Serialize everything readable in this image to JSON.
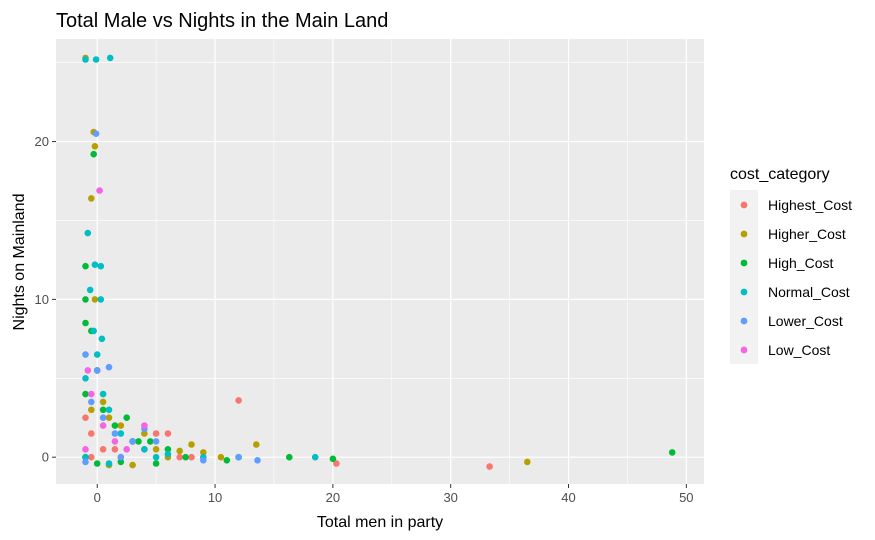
{
  "chart_data": {
    "type": "scatter",
    "title": "Total Male vs Nights in the Main Land",
    "xlabel": "Total men in party",
    "ylabel": "Nights on Mainland",
    "xlim": [
      -3.5,
      51.5
    ],
    "ylim": [
      -1.7,
      26.5
    ],
    "x_ticks": [
      0,
      10,
      20,
      30,
      40,
      50
    ],
    "y_ticks": [
      0,
      10,
      20
    ],
    "grid": true,
    "legend": {
      "title": "cost_category",
      "position": "right",
      "entries": [
        "Highest_Cost",
        "Higher_Cost",
        "High_Cost",
        "Normal_Cost",
        "Lower_Cost",
        "Low_Cost"
      ]
    },
    "colors": {
      "Highest_Cost": "#F8766D",
      "Higher_Cost": "#B79F00",
      "High_Cost": "#00BA38",
      "Normal_Cost": "#00BFC4",
      "Lower_Cost": "#619CFF",
      "Low_Cost": "#F564E3"
    },
    "series": [
      {
        "name": "Highest_Cost",
        "points": [
          [
            -1,
            2.5
          ],
          [
            -0.5,
            1.5
          ],
          [
            0.5,
            0.5
          ],
          [
            1.5,
            0.5
          ],
          [
            3,
            1.0
          ],
          [
            4,
            0.5
          ],
          [
            5,
            1.5
          ],
          [
            6,
            1.5
          ],
          [
            8,
            0.0
          ],
          [
            12,
            3.6
          ],
          [
            20.3,
            -0.4
          ],
          [
            33.3,
            -0.6
          ],
          [
            -0.5,
            0.0
          ],
          [
            2,
            0.0
          ],
          [
            7,
            0.0
          ]
        ]
      },
      {
        "name": "Higher_Cost",
        "points": [
          [
            -1,
            25.3
          ],
          [
            -0.3,
            20.6
          ],
          [
            -0.2,
            19.7
          ],
          [
            -0.5,
            16.4
          ],
          [
            -0.2,
            10.0
          ],
          [
            0,
            5.5
          ],
          [
            -0.5,
            3.0
          ],
          [
            0.5,
            3.5
          ],
          [
            1,
            2.5
          ],
          [
            2,
            2.0
          ],
          [
            3,
            1.0
          ],
          [
            4,
            1.5
          ],
          [
            5,
            0.5
          ],
          [
            7,
            0.4
          ],
          [
            8,
            0.8
          ],
          [
            9,
            0.3
          ],
          [
            10.5,
            0.0
          ],
          [
            13.5,
            0.8
          ],
          [
            36.5,
            -0.3
          ],
          [
            -1,
            0.0
          ],
          [
            1,
            -0.5
          ],
          [
            3,
            -0.5
          ],
          [
            6,
            0.0
          ]
        ]
      },
      {
        "name": "High_Cost",
        "points": [
          [
            -0.3,
            19.2
          ],
          [
            -1,
            12.1
          ],
          [
            -1,
            10.0
          ],
          [
            -1,
            8.5
          ],
          [
            -0.5,
            8.0
          ],
          [
            0,
            5.5
          ],
          [
            -1,
            4.0
          ],
          [
            0.5,
            3.0
          ],
          [
            1.5,
            2.0
          ],
          [
            2.5,
            2.5
          ],
          [
            3.5,
            1.0
          ],
          [
            4.5,
            1.0
          ],
          [
            6,
            0.5
          ],
          [
            7.5,
            0.0
          ],
          [
            11,
            -0.2
          ],
          [
            16.3,
            0.0
          ],
          [
            20,
            -0.1
          ],
          [
            48.8,
            0.3
          ],
          [
            -1,
            0.0
          ],
          [
            0,
            -0.4
          ],
          [
            2,
            -0.3
          ],
          [
            5,
            -0.4
          ]
        ]
      },
      {
        "name": "Normal_Cost",
        "points": [
          [
            -1,
            25.2
          ],
          [
            -0.1,
            25.2
          ],
          [
            1.1,
            25.3
          ],
          [
            -0.8,
            14.2
          ],
          [
            -0.2,
            12.2
          ],
          [
            0.3,
            12.1
          ],
          [
            -0.6,
            10.6
          ],
          [
            0.3,
            10.0
          ],
          [
            -0.3,
            8.0
          ],
          [
            0.4,
            7.5
          ],
          [
            0,
            6.5
          ],
          [
            -1,
            5.0
          ],
          [
            0.5,
            4.0
          ],
          [
            1,
            3.0
          ],
          [
            2,
            1.5
          ],
          [
            3,
            1.0
          ],
          [
            4,
            0.5
          ],
          [
            5,
            0.0
          ],
          [
            6,
            0.2
          ],
          [
            9,
            0.0
          ],
          [
            12,
            0.0
          ],
          [
            18.5,
            0.0
          ],
          [
            -1,
            0.0
          ],
          [
            1,
            -0.4
          ]
        ]
      },
      {
        "name": "Lower_Cost",
        "points": [
          [
            -0.1,
            20.5
          ],
          [
            -1,
            6.5
          ],
          [
            0,
            5.5
          ],
          [
            1,
            5.7
          ],
          [
            -0.5,
            3.5
          ],
          [
            0.5,
            2.5
          ],
          [
            1.5,
            1.5
          ],
          [
            3,
            1.0
          ],
          [
            4,
            1.8
          ],
          [
            5,
            1.0
          ],
          [
            9,
            -0.2
          ],
          [
            12,
            0.0
          ],
          [
            13.6,
            -0.2
          ],
          [
            -1,
            -0.3
          ],
          [
            2,
            0.0
          ]
        ]
      },
      {
        "name": "Low_Cost",
        "points": [
          [
            0.2,
            16.9
          ],
          [
            -0.8,
            5.5
          ],
          [
            -0.5,
            4.0
          ],
          [
            0.5,
            2.0
          ],
          [
            1.5,
            1.0
          ],
          [
            2.5,
            0.5
          ],
          [
            4,
            2.0
          ],
          [
            -1,
            0.5
          ]
        ]
      }
    ]
  }
}
